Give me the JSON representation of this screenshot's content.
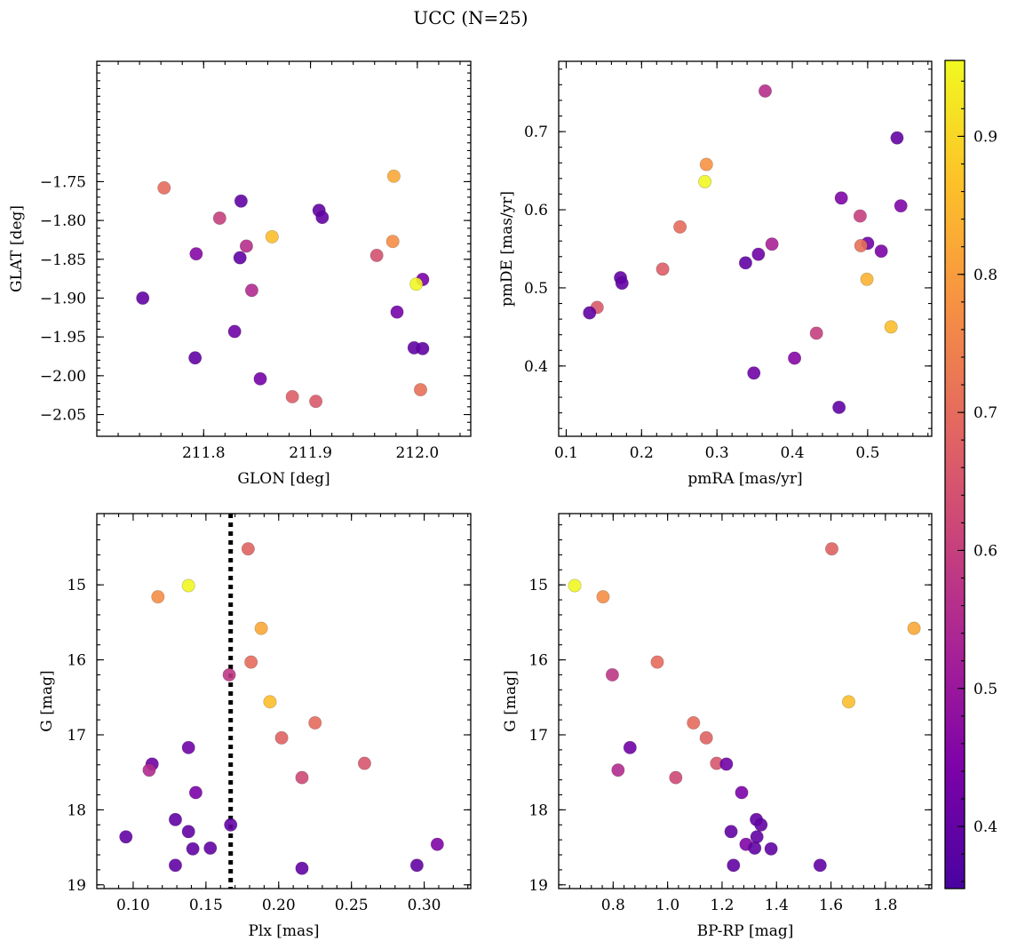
{
  "figure": {
    "title": "UCC (N=25)"
  },
  "colors": {
    "colormap": "plasma",
    "point_alpha": 0.9,
    "vline": "#000000"
  },
  "colorbar": {
    "ticks": [
      0.4,
      0.5,
      0.6,
      0.7,
      0.8,
      0.9
    ],
    "vmin": 0.355,
    "vmax": 0.955
  },
  "chart_data": [
    {
      "type": "scatter",
      "title": "",
      "xlabel": "GLON [deg]",
      "ylabel": "GLAT [deg]",
      "xlim": [
        211.7,
        212.05
      ],
      "ylim": [
        -2.078,
        -1.595
      ],
      "xticks": [
        211.8,
        211.9,
        212.0
      ],
      "xtick_labels": [
        "211.8",
        "211.9",
        "212.0"
      ],
      "yticks": [
        -1.75,
        -1.8,
        -1.85,
        -1.9,
        -1.95,
        -2.0,
        -2.05
      ],
      "ytick_labels": [
        "−1.75",
        "−1.80",
        "−1.85",
        "−1.90",
        "−1.95",
        "−2.00",
        "−2.05"
      ],
      "y_inverted": false,
      "points": [
        {
          "x": 211.763,
          "y": -1.758,
          "c": 0.7
        },
        {
          "x": 211.978,
          "y": -1.743,
          "c": 0.82
        },
        {
          "x": 211.835,
          "y": -1.775,
          "c": 0.4
        },
        {
          "x": 211.908,
          "y": -1.787,
          "c": 0.4
        },
        {
          "x": 211.911,
          "y": -1.796,
          "c": 0.4
        },
        {
          "x": 211.815,
          "y": -1.797,
          "c": 0.6
        },
        {
          "x": 211.864,
          "y": -1.821,
          "c": 0.86
        },
        {
          "x": 211.977,
          "y": -1.827,
          "c": 0.77
        },
        {
          "x": 211.84,
          "y": -1.833,
          "c": 0.56
        },
        {
          "x": 211.793,
          "y": -1.843,
          "c": 0.46
        },
        {
          "x": 211.962,
          "y": -1.845,
          "c": 0.64
        },
        {
          "x": 211.834,
          "y": -1.848,
          "c": 0.4
        },
        {
          "x": 212.005,
          "y": -1.876,
          "c": 0.44
        },
        {
          "x": 211.999,
          "y": -1.882,
          "c": 0.95
        },
        {
          "x": 211.845,
          "y": -1.89,
          "c": 0.55
        },
        {
          "x": 211.743,
          "y": -1.9,
          "c": 0.4
        },
        {
          "x": 211.981,
          "y": -1.918,
          "c": 0.43
        },
        {
          "x": 211.829,
          "y": -1.943,
          "c": 0.42
        },
        {
          "x": 211.997,
          "y": -1.964,
          "c": 0.4
        },
        {
          "x": 212.005,
          "y": -1.965,
          "c": 0.4
        },
        {
          "x": 211.792,
          "y": -1.977,
          "c": 0.4
        },
        {
          "x": 211.853,
          "y": -2.004,
          "c": 0.43
        },
        {
          "x": 212.003,
          "y": -2.018,
          "c": 0.71
        },
        {
          "x": 211.883,
          "y": -2.027,
          "c": 0.67
        },
        {
          "x": 211.905,
          "y": -2.033,
          "c": 0.66
        }
      ]
    },
    {
      "type": "scatter",
      "title": "",
      "xlabel": "pmRA [mas/yr]",
      "ylabel": "pmDE [mas/yr]",
      "xlim": [
        0.09,
        0.585
      ],
      "ylim": [
        0.31,
        0.79
      ],
      "xticks": [
        0.1,
        0.2,
        0.3,
        0.4,
        0.5
      ],
      "xtick_labels": [
        "0.1",
        "0.2",
        "0.3",
        "0.4",
        "0.5"
      ],
      "yticks": [
        0.4,
        0.5,
        0.6,
        0.7
      ],
      "ytick_labels": [
        "0.4",
        "0.5",
        "0.6",
        "0.7"
      ],
      "y_inverted": false,
      "points": [
        {
          "x": 0.364,
          "y": 0.752,
          "c": 0.56
        },
        {
          "x": 0.539,
          "y": 0.692,
          "c": 0.4
        },
        {
          "x": 0.286,
          "y": 0.658,
          "c": 0.78
        },
        {
          "x": 0.284,
          "y": 0.636,
          "c": 0.95
        },
        {
          "x": 0.465,
          "y": 0.615,
          "c": 0.45
        },
        {
          "x": 0.544,
          "y": 0.605,
          "c": 0.45
        },
        {
          "x": 0.49,
          "y": 0.592,
          "c": 0.6
        },
        {
          "x": 0.251,
          "y": 0.578,
          "c": 0.7
        },
        {
          "x": 0.373,
          "y": 0.556,
          "c": 0.53
        },
        {
          "x": 0.5,
          "y": 0.557,
          "c": 0.42
        },
        {
          "x": 0.491,
          "y": 0.554,
          "c": 0.71
        },
        {
          "x": 0.518,
          "y": 0.547,
          "c": 0.44
        },
        {
          "x": 0.355,
          "y": 0.543,
          "c": 0.42
        },
        {
          "x": 0.338,
          "y": 0.532,
          "c": 0.4
        },
        {
          "x": 0.228,
          "y": 0.524,
          "c": 0.67
        },
        {
          "x": 0.172,
          "y": 0.513,
          "c": 0.4
        },
        {
          "x": 0.174,
          "y": 0.506,
          "c": 0.4
        },
        {
          "x": 0.499,
          "y": 0.511,
          "c": 0.84
        },
        {
          "x": 0.141,
          "y": 0.475,
          "c": 0.66
        },
        {
          "x": 0.131,
          "y": 0.468,
          "c": 0.4
        },
        {
          "x": 0.531,
          "y": 0.45,
          "c": 0.86
        },
        {
          "x": 0.432,
          "y": 0.442,
          "c": 0.6
        },
        {
          "x": 0.403,
          "y": 0.41,
          "c": 0.46
        },
        {
          "x": 0.349,
          "y": 0.391,
          "c": 0.42
        },
        {
          "x": 0.462,
          "y": 0.347,
          "c": 0.4
        }
      ]
    },
    {
      "type": "scatter",
      "title": "",
      "xlabel": "Plx [mas]",
      "ylabel": "G [mag]",
      "xlim": [
        0.075,
        0.332
      ],
      "ylim": [
        19.05,
        14.05
      ],
      "xticks": [
        0.1,
        0.15,
        0.2,
        0.25,
        0.3
      ],
      "xtick_labels": [
        "0.10",
        "0.15",
        "0.20",
        "0.25",
        "0.30"
      ],
      "yticks": [
        15,
        16,
        17,
        18,
        19
      ],
      "ytick_labels": [
        "15",
        "16",
        "17",
        "18",
        "19"
      ],
      "y_inverted": true,
      "vline": 0.167,
      "points": [
        {
          "x": 0.179,
          "y": 14.52,
          "c": 0.68
        },
        {
          "x": 0.138,
          "y": 15.01,
          "c": 0.95
        },
        {
          "x": 0.117,
          "y": 15.16,
          "c": 0.77
        },
        {
          "x": 0.188,
          "y": 15.58,
          "c": 0.82
        },
        {
          "x": 0.181,
          "y": 16.03,
          "c": 0.7
        },
        {
          "x": 0.166,
          "y": 16.2,
          "c": 0.58
        },
        {
          "x": 0.194,
          "y": 16.56,
          "c": 0.86
        },
        {
          "x": 0.225,
          "y": 16.84,
          "c": 0.7
        },
        {
          "x": 0.202,
          "y": 17.04,
          "c": 0.68
        },
        {
          "x": 0.138,
          "y": 17.17,
          "c": 0.42
        },
        {
          "x": 0.259,
          "y": 17.38,
          "c": 0.65
        },
        {
          "x": 0.113,
          "y": 17.39,
          "c": 0.42
        },
        {
          "x": 0.111,
          "y": 17.47,
          "c": 0.55
        },
        {
          "x": 0.216,
          "y": 17.57,
          "c": 0.62
        },
        {
          "x": 0.143,
          "y": 17.77,
          "c": 0.44
        },
        {
          "x": 0.129,
          "y": 18.13,
          "c": 0.4
        },
        {
          "x": 0.167,
          "y": 18.2,
          "c": 0.4
        },
        {
          "x": 0.138,
          "y": 18.29,
          "c": 0.4
        },
        {
          "x": 0.095,
          "y": 18.36,
          "c": 0.4
        },
        {
          "x": 0.309,
          "y": 18.46,
          "c": 0.45
        },
        {
          "x": 0.153,
          "y": 18.51,
          "c": 0.4
        },
        {
          "x": 0.141,
          "y": 18.52,
          "c": 0.4
        },
        {
          "x": 0.129,
          "y": 18.74,
          "c": 0.4
        },
        {
          "x": 0.295,
          "y": 18.74,
          "c": 0.4
        },
        {
          "x": 0.216,
          "y": 18.78,
          "c": 0.4
        }
      ]
    },
    {
      "type": "scatter",
      "title": "",
      "xlabel": "BP-RP [mag]",
      "ylabel": "G [mag]",
      "xlim": [
        0.6,
        1.97
      ],
      "ylim": [
        19.05,
        14.05
      ],
      "xticks": [
        0.8,
        1.0,
        1.2,
        1.4,
        1.6,
        1.8
      ],
      "xtick_labels": [
        "0.8",
        "1.0",
        "1.2",
        "1.4",
        "1.6",
        "1.8"
      ],
      "yticks": [
        15,
        16,
        17,
        18,
        19
      ],
      "ytick_labels": [
        "15",
        "16",
        "17",
        "18",
        "19"
      ],
      "y_inverted": true,
      "points": [
        {
          "x": 1.603,
          "y": 14.52,
          "c": 0.68
        },
        {
          "x": 0.659,
          "y": 15.01,
          "c": 0.95
        },
        {
          "x": 0.763,
          "y": 15.16,
          "c": 0.77
        },
        {
          "x": 1.905,
          "y": 15.58,
          "c": 0.82
        },
        {
          "x": 0.962,
          "y": 16.03,
          "c": 0.7
        },
        {
          "x": 0.797,
          "y": 16.2,
          "c": 0.58
        },
        {
          "x": 1.665,
          "y": 16.56,
          "c": 0.86
        },
        {
          "x": 1.095,
          "y": 16.84,
          "c": 0.7
        },
        {
          "x": 1.142,
          "y": 17.04,
          "c": 0.68
        },
        {
          "x": 0.862,
          "y": 17.17,
          "c": 0.42
        },
        {
          "x": 1.18,
          "y": 17.38,
          "c": 0.65
        },
        {
          "x": 1.216,
          "y": 17.39,
          "c": 0.42
        },
        {
          "x": 0.818,
          "y": 17.47,
          "c": 0.55
        },
        {
          "x": 1.03,
          "y": 17.57,
          "c": 0.62
        },
        {
          "x": 1.272,
          "y": 17.77,
          "c": 0.44
        },
        {
          "x": 1.326,
          "y": 18.13,
          "c": 0.4
        },
        {
          "x": 1.343,
          "y": 18.2,
          "c": 0.4
        },
        {
          "x": 1.233,
          "y": 18.29,
          "c": 0.4
        },
        {
          "x": 1.328,
          "y": 18.36,
          "c": 0.4
        },
        {
          "x": 1.288,
          "y": 18.46,
          "c": 0.45
        },
        {
          "x": 1.32,
          "y": 18.51,
          "c": 0.4
        },
        {
          "x": 1.38,
          "y": 18.52,
          "c": 0.4
        },
        {
          "x": 1.242,
          "y": 18.74,
          "c": 0.4
        },
        {
          "x": 1.56,
          "y": 18.74,
          "c": 0.4
        }
      ]
    }
  ]
}
